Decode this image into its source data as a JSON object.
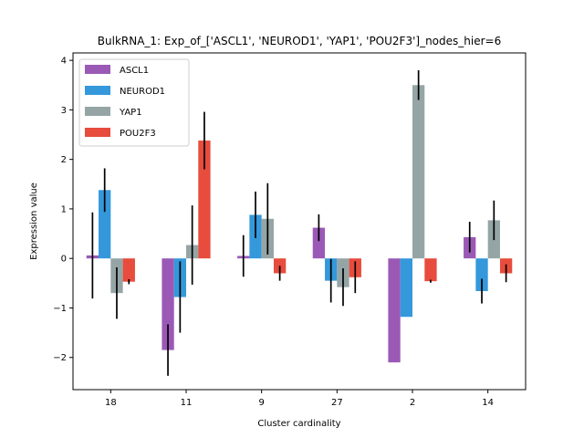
{
  "chart_data": {
    "type": "bar",
    "title": "BulkRNA_1: Exp_of_['ASCL1', 'NEUROD1', 'YAP1', 'POU2F3']_nodes_hier=6",
    "xlabel": "Cluster cardinality",
    "ylabel": "Expression value",
    "categories": [
      "18",
      "11",
      "9",
      "27",
      "2",
      "14"
    ],
    "ylim": [
      -2.65,
      4.15
    ],
    "yticks": [
      -2,
      -1,
      0,
      1,
      2,
      3,
      4
    ],
    "ytick_labels": [
      "−2",
      "−1",
      "0",
      "1",
      "2",
      "3",
      "4"
    ],
    "grid": false,
    "legend_position": "top-left",
    "series": [
      {
        "name": "ASCL1",
        "color": "#9b59b6",
        "values": [
          0.06,
          -1.85,
          0.05,
          0.62,
          -2.1,
          0.43
        ],
        "errors": [
          0.87,
          0.52,
          0.42,
          0.27,
          0.0,
          0.31
        ]
      },
      {
        "name": "NEUROD1",
        "color": "#3498db",
        "values": [
          1.38,
          -0.78,
          0.88,
          -0.45,
          -1.18,
          -0.66
        ],
        "errors": [
          0.44,
          0.72,
          0.47,
          0.44,
          0.0,
          0.25
        ]
      },
      {
        "name": "YAP1",
        "color": "#95a5a6",
        "values": [
          -0.7,
          0.27,
          0.8,
          -0.58,
          3.5,
          0.77
        ],
        "errors": [
          0.52,
          0.8,
          0.72,
          0.38,
          0.3,
          0.4
        ]
      },
      {
        "name": "POU2F3",
        "color": "#e74c3c",
        "values": [
          -0.47,
          2.38,
          -0.3,
          -0.38,
          -0.46,
          -0.3
        ],
        "errors": [
          0.05,
          0.58,
          0.15,
          0.32,
          0.03,
          0.18
        ]
      }
    ]
  }
}
